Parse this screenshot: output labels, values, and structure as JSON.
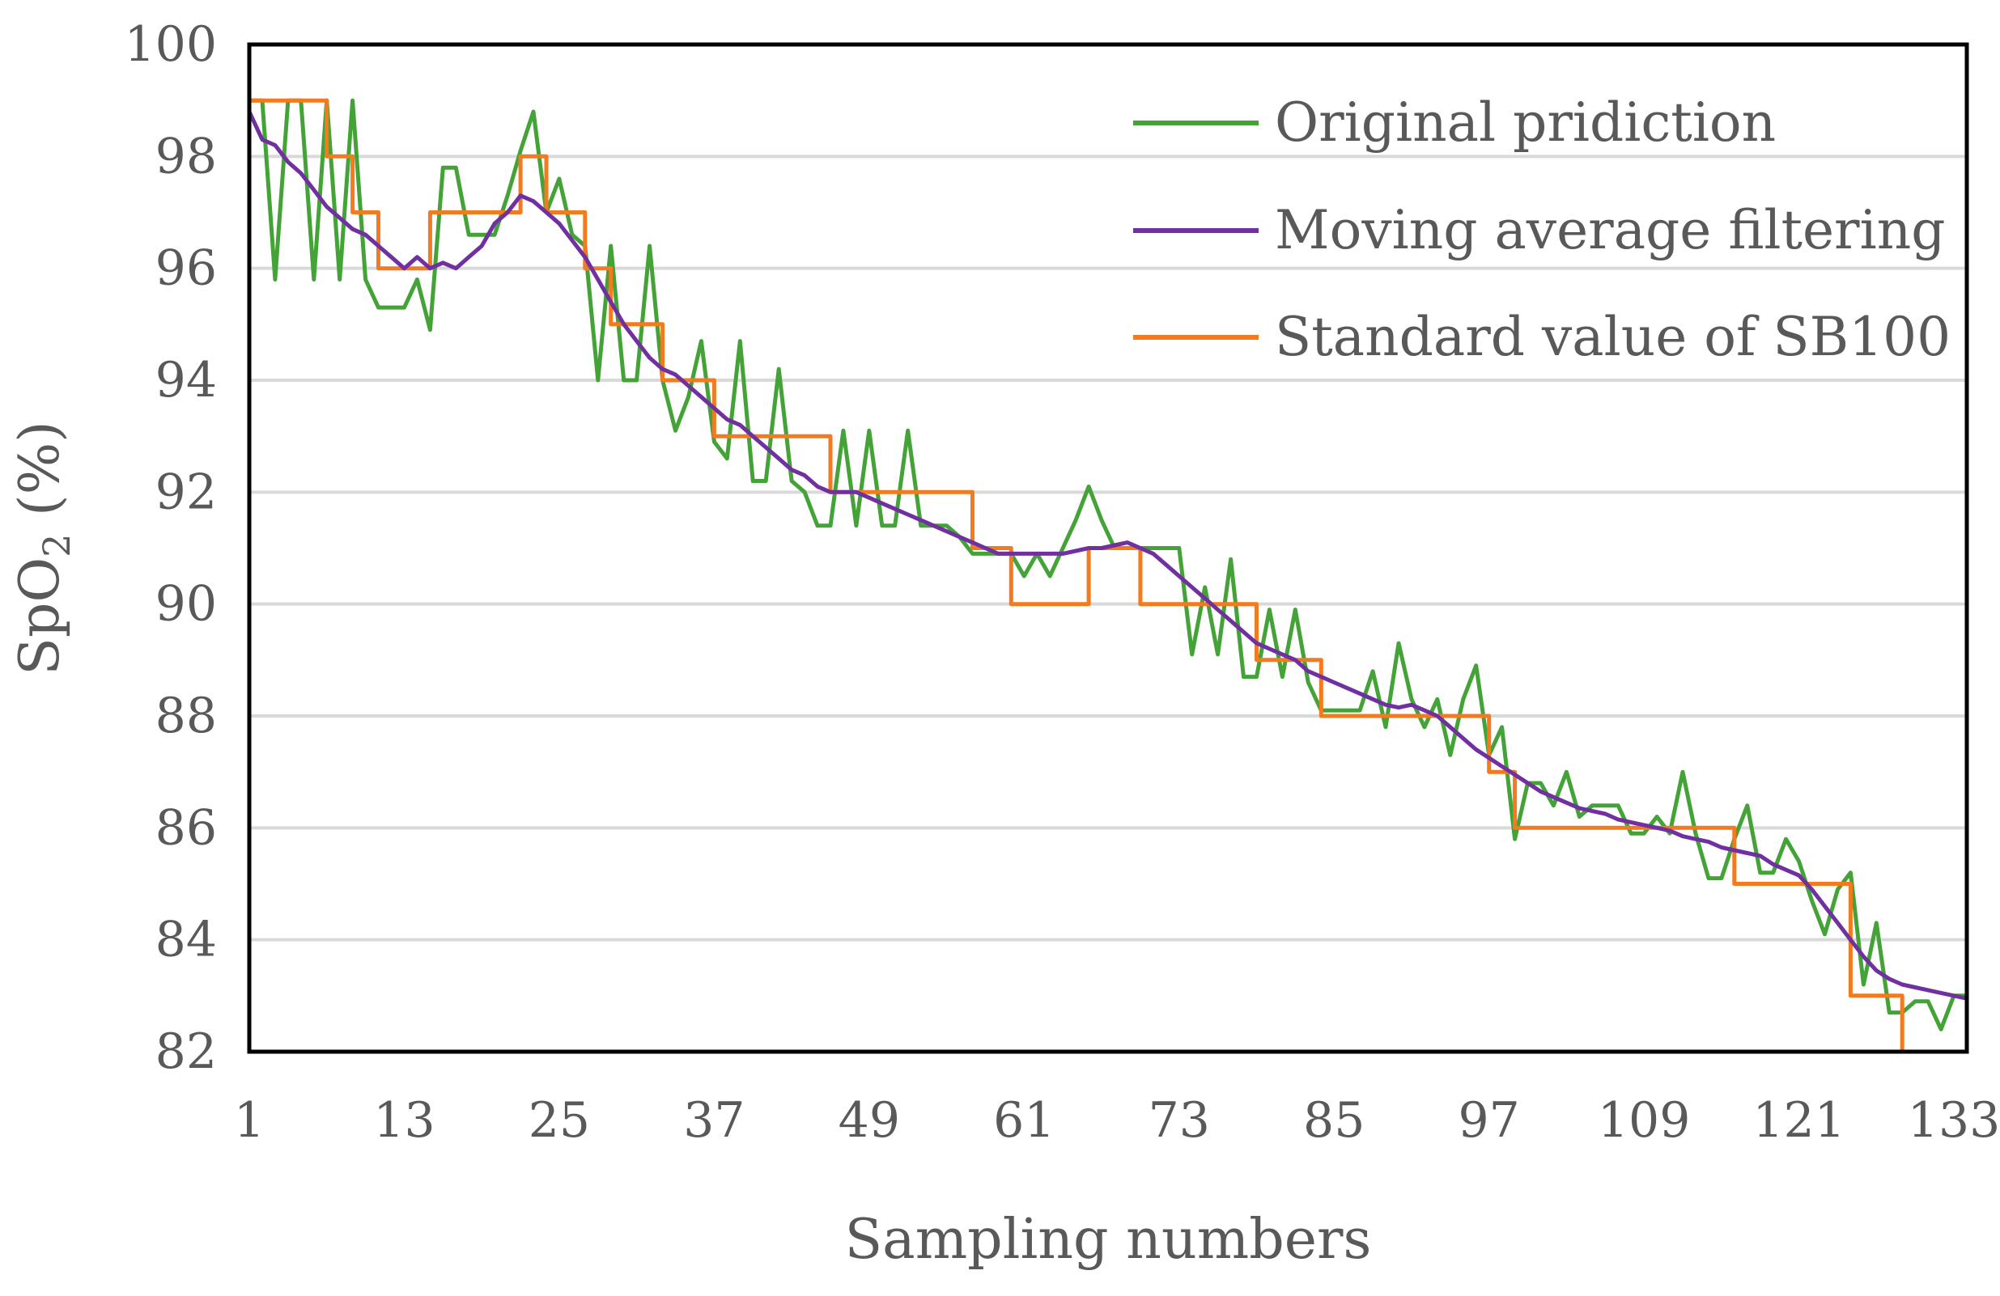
{
  "chart_data": {
    "type": "line",
    "title": "",
    "xlabel": "Sampling numbers",
    "ylabel_main": "SpO",
    "ylabel_sub": "2",
    "ylabel_rest": " (%)",
    "xlim": [
      1,
      134
    ],
    "ylim": [
      82,
      100
    ],
    "xticks": [
      1,
      13,
      25,
      37,
      49,
      61,
      73,
      85,
      97,
      109,
      121,
      133
    ],
    "yticks": [
      82,
      84,
      86,
      88,
      90,
      92,
      94,
      96,
      98,
      100
    ],
    "grid": "horizontal",
    "legend_position": "top-right",
    "x": [
      1,
      2,
      3,
      4,
      5,
      6,
      7,
      8,
      9,
      10,
      11,
      12,
      13,
      14,
      15,
      16,
      17,
      18,
      19,
      20,
      21,
      22,
      23,
      24,
      25,
      26,
      27,
      28,
      29,
      30,
      31,
      32,
      33,
      34,
      35,
      36,
      37,
      38,
      39,
      40,
      41,
      42,
      43,
      44,
      45,
      46,
      47,
      48,
      49,
      50,
      51,
      52,
      53,
      54,
      55,
      56,
      57,
      58,
      59,
      60,
      61,
      62,
      63,
      64,
      65,
      66,
      67,
      68,
      69,
      70,
      71,
      72,
      73,
      74,
      75,
      76,
      77,
      78,
      79,
      80,
      81,
      82,
      83,
      84,
      85,
      86,
      87,
      88,
      89,
      90,
      91,
      92,
      93,
      94,
      95,
      96,
      97,
      98,
      99,
      100,
      101,
      102,
      103,
      104,
      105,
      106,
      107,
      108,
      109,
      110,
      111,
      112,
      113,
      114,
      115,
      116,
      117,
      118,
      119,
      120,
      121,
      122,
      123,
      124,
      125,
      126,
      127,
      128,
      129,
      130,
      131,
      132,
      133,
      134
    ],
    "series": [
      {
        "name": "Original pridiction",
        "color": "#43a337",
        "values": [
          99.0,
          99.0,
          95.8,
          99.0,
          99.0,
          95.8,
          99.0,
          95.8,
          99.0,
          95.8,
          95.3,
          95.3,
          95.3,
          95.8,
          94.9,
          97.8,
          97.8,
          96.6,
          96.6,
          96.6,
          97.3,
          98.1,
          98.8,
          97.0,
          97.6,
          96.6,
          96.4,
          94.0,
          96.4,
          94.0,
          94.0,
          96.4,
          94.0,
          93.1,
          93.7,
          94.7,
          92.9,
          92.6,
          94.7,
          92.2,
          92.2,
          94.2,
          92.2,
          92.0,
          91.4,
          91.4,
          93.1,
          91.4,
          93.1,
          91.4,
          91.4,
          93.1,
          91.4,
          91.4,
          91.4,
          91.2,
          90.9,
          90.9,
          90.9,
          90.9,
          90.5,
          90.9,
          90.5,
          91.0,
          91.5,
          92.1,
          91.5,
          91.0,
          91.0,
          91.0,
          91.0,
          91.0,
          91.0,
          89.1,
          90.3,
          89.1,
          90.8,
          88.7,
          88.7,
          89.9,
          88.7,
          89.9,
          88.6,
          88.1,
          88.1,
          88.1,
          88.1,
          88.8,
          87.8,
          89.3,
          88.3,
          87.8,
          88.3,
          87.3,
          88.3,
          88.9,
          87.3,
          87.8,
          85.8,
          86.8,
          86.8,
          86.4,
          87.0,
          86.2,
          86.4,
          86.4,
          86.4,
          85.9,
          85.9,
          86.2,
          85.9,
          87.0,
          85.9,
          85.1,
          85.1,
          85.8,
          86.4,
          85.2,
          85.2,
          85.8,
          85.4,
          84.7,
          84.1,
          84.9,
          85.2,
          83.2,
          84.3,
          82.7,
          82.7,
          82.9,
          82.9,
          82.4,
          83.0,
          83.0
        ]
      },
      {
        "name": "Moving average filtering",
        "color": "#7030a0",
        "values": [
          98.8,
          98.3,
          98.2,
          97.9,
          97.7,
          97.4,
          97.1,
          96.9,
          96.7,
          96.6,
          96.4,
          96.2,
          96.0,
          96.2,
          96.0,
          96.1,
          96.0,
          96.2,
          96.4,
          96.8,
          97.0,
          97.3,
          97.2,
          97.0,
          96.8,
          96.5,
          96.2,
          95.8,
          95.4,
          95.0,
          94.7,
          94.4,
          94.2,
          94.1,
          93.9,
          93.7,
          93.5,
          93.3,
          93.2,
          93.0,
          92.8,
          92.6,
          92.4,
          92.3,
          92.1,
          92.0,
          92.0,
          92.0,
          91.9,
          91.8,
          91.7,
          91.6,
          91.5,
          91.4,
          91.3,
          91.2,
          91.1,
          91.0,
          90.9,
          90.9,
          90.9,
          90.9,
          90.9,
          90.9,
          90.95,
          91.0,
          91.0,
          91.05,
          91.1,
          91.0,
          90.9,
          90.7,
          90.5,
          90.3,
          90.1,
          89.9,
          89.7,
          89.5,
          89.3,
          89.2,
          89.1,
          89.0,
          88.8,
          88.7,
          88.6,
          88.5,
          88.4,
          88.3,
          88.2,
          88.15,
          88.2,
          88.1,
          88.0,
          87.8,
          87.6,
          87.4,
          87.25,
          87.1,
          86.95,
          86.8,
          86.65,
          86.55,
          86.45,
          86.35,
          86.3,
          86.25,
          86.15,
          86.1,
          86.05,
          86.0,
          85.95,
          85.85,
          85.8,
          85.75,
          85.65,
          85.6,
          85.55,
          85.5,
          85.35,
          85.25,
          85.15,
          84.9,
          84.6,
          84.3,
          84.0,
          83.7,
          83.45,
          83.3,
          83.2,
          83.15,
          83.1,
          83.05,
          83.0,
          82.95
        ]
      },
      {
        "name": "Standard value of SB100",
        "color": "#f47a1f",
        "values": [
          99,
          99,
          99,
          99,
          99,
          99,
          98,
          98,
          97,
          97,
          96,
          96,
          96,
          96,
          97,
          97,
          97,
          97,
          97,
          97,
          97,
          98,
          98,
          97,
          97,
          97,
          96,
          96,
          95,
          95,
          95,
          95,
          94,
          94,
          94,
          94,
          93,
          93,
          93,
          93,
          93,
          93,
          93,
          93,
          93,
          92,
          92,
          92,
          92,
          92,
          92,
          92,
          92,
          92,
          92,
          92,
          91,
          91,
          91,
          90,
          90,
          90,
          90,
          90,
          90,
          91,
          91,
          91,
          91,
          90,
          90,
          90,
          90,
          90,
          90,
          90,
          90,
          90,
          89,
          89,
          89,
          89,
          89,
          88,
          88,
          88,
          88,
          88,
          88,
          88,
          88,
          88,
          88,
          88,
          88,
          88,
          87,
          87,
          86,
          86,
          86,
          86,
          86,
          86,
          86,
          86,
          86,
          86,
          86,
          86,
          86,
          86,
          86,
          86,
          86,
          85,
          85,
          85,
          85,
          85,
          85,
          85,
          85,
          85,
          83,
          83,
          83,
          83,
          82,
          82,
          82,
          82,
          82,
          82
        ]
      }
    ]
  }
}
